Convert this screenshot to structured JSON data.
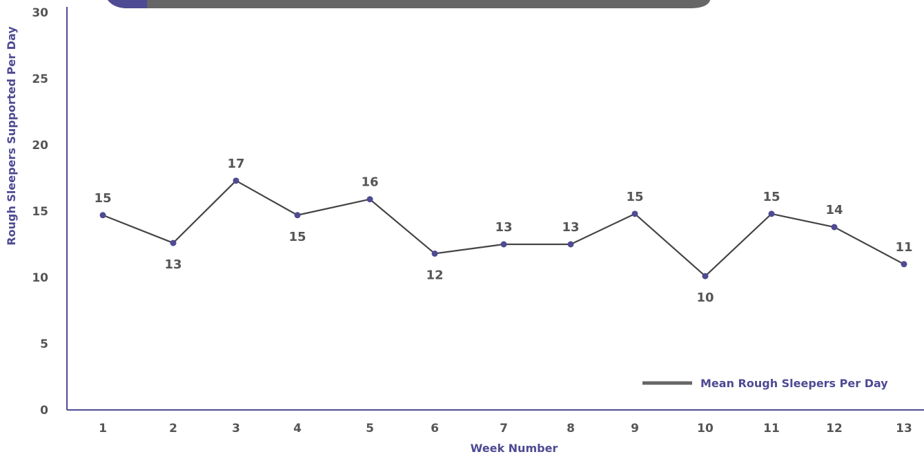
{
  "colors": {
    "accent": "#4e4a93",
    "line": "#444444",
    "text": "#555555",
    "banner": "#666666"
  },
  "chart_data": {
    "type": "line",
    "xlabel": "Week Number",
    "ylabel": "Rough Sleepers Supported Per Day",
    "ylim": [
      0,
      30
    ],
    "yticks": [
      0,
      5,
      10,
      15,
      20,
      25,
      30
    ],
    "categories": [
      "1",
      "2",
      "3",
      "4",
      "5",
      "6",
      "7",
      "8",
      "9",
      "10",
      "11",
      "12",
      "13"
    ],
    "series": [
      {
        "name": "Mean Rough Sleepers Per Day",
        "values": [
          14.7,
          12.6,
          17.3,
          14.7,
          15.9,
          11.8,
          12.5,
          12.5,
          14.8,
          10.1,
          14.8,
          13.8,
          11.0
        ],
        "labels": [
          "15",
          "13",
          "17",
          "15",
          "16",
          "12",
          "13",
          "13",
          "15",
          "10",
          "15",
          "14",
          "11"
        ]
      }
    ],
    "grid": false,
    "legend": "bottom-right"
  }
}
